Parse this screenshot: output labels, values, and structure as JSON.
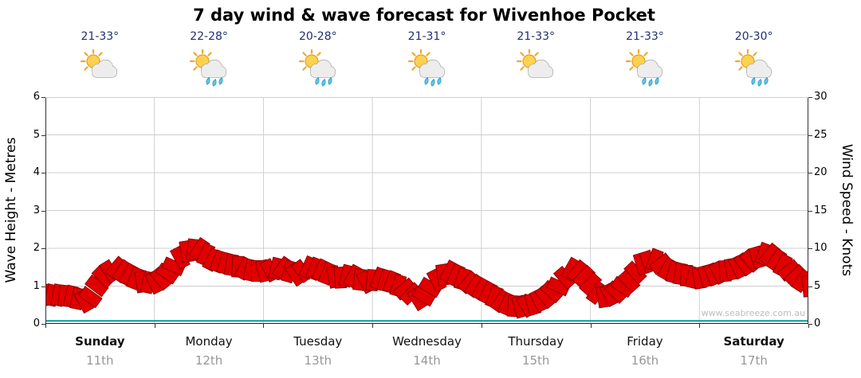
{
  "title": "7 day wind & wave forecast for Wivenhoe Pocket",
  "watermark": "www.seabreeze.com.au",
  "days": [
    {
      "name": "Sunday",
      "date": "11th",
      "temp": "21-33°",
      "icon": "sun-cloud",
      "bold": true
    },
    {
      "name": "Monday",
      "date": "12th",
      "temp": "22-28°",
      "icon": "sun-cloud-rain",
      "bold": false
    },
    {
      "name": "Tuesday",
      "date": "13th",
      "temp": "20-28°",
      "icon": "sun-cloud-rain",
      "bold": false
    },
    {
      "name": "Wednesday",
      "date": "14th",
      "temp": "21-31°",
      "icon": "sun-cloud-rain",
      "bold": false
    },
    {
      "name": "Thursday",
      "date": "15th",
      "temp": "21-33°",
      "icon": "sun-cloud",
      "bold": false
    },
    {
      "name": "Friday",
      "date": "16th",
      "temp": "21-33°",
      "icon": "sun-cloud-rain",
      "bold": false
    },
    {
      "name": "Saturday",
      "date": "17th",
      "temp": "20-30°",
      "icon": "sun-cloud-rain",
      "bold": true
    }
  ],
  "chart_data": {
    "type": "line",
    "title": "7 day wind & wave forecast for Wivenhoe Pocket",
    "x_categories": [
      "Sunday 11th",
      "Monday 12th",
      "Tuesday 13th",
      "Wednesday 14th",
      "Thursday 15th",
      "Friday 16th",
      "Saturday 17th"
    ],
    "left_axis": {
      "label": "Wave Height - Metres",
      "min": 0,
      "max": 6,
      "ticks": [
        0,
        1,
        2,
        3,
        4,
        5,
        6
      ]
    },
    "right_axis": {
      "label": "Wind Speed - Knots",
      "min": 0,
      "max": 30,
      "ticks": [
        0,
        5,
        10,
        15,
        20,
        25,
        30
      ]
    },
    "grid": true,
    "legend": "none",
    "series": [
      {
        "name": "Wind Speed",
        "unit": "knots",
        "axis": "right",
        "color": "#e00000",
        "points_per_day": 8,
        "values": [
          3.8,
          3.8,
          3.6,
          2.8,
          6,
          7.5,
          6.5,
          5.5,
          5.5,
          7,
          9.5,
          10,
          8.5,
          8,
          7.5,
          7,
          7,
          7.5,
          6.5,
          7.5,
          7,
          6,
          6.5,
          5.5,
          6,
          5.5,
          4.5,
          3,
          5.5,
          7,
          6,
          5,
          4,
          2.8,
          2.2,
          2.5,
          3.5,
          5,
          7.5,
          6,
          3.5,
          4,
          5.5,
          8,
          8.5,
          7,
          6.5,
          6,
          6.5,
          7,
          7.5,
          8.5,
          9.5,
          8,
          6.5,
          5
        ]
      },
      {
        "name": "Wave Height",
        "unit": "metres",
        "axis": "left",
        "color": "#009b9b",
        "values": [
          0.08,
          0.08,
          0.08,
          0.08,
          0.08,
          0.08,
          0.08,
          0.08
        ]
      }
    ]
  }
}
